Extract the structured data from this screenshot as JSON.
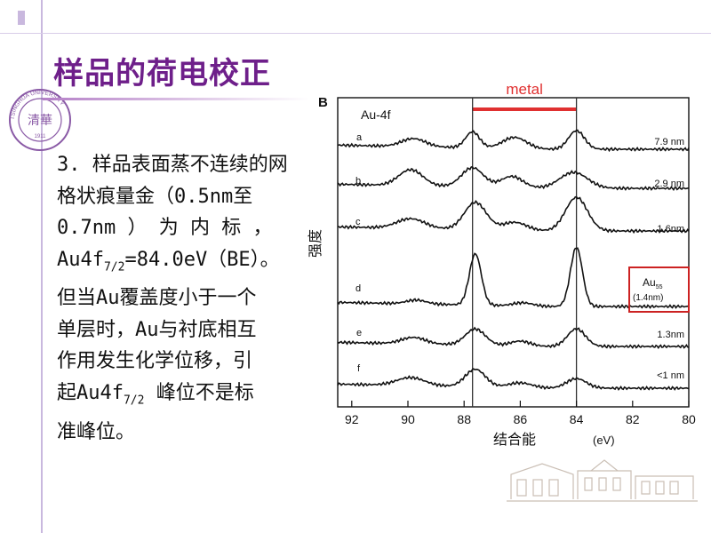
{
  "slide": {
    "title": "样品的荷电校正",
    "body_lines": [
      {
        "pre": "3. 样品表面蒸不连续的网"
      },
      {
        "pre": "格状痕量金（0.5nm至"
      },
      {
        "pre": "0.7nm ） 为 内 标 ，"
      },
      {
        "pre": "Au4f",
        "sub": "7/2",
        "post": "=84.0eV（BE）。"
      },
      {
        "pre": "但当Au覆盖度小于一个"
      },
      {
        "pre": "单层时，Au与衬底相互"
      },
      {
        "pre": "作用发生化学位移，引"
      },
      {
        "pre": "起Au4f",
        "sub": "7/2",
        "post": " 峰位不是标"
      },
      {
        "pre": "准峰位。"
      }
    ],
    "logo": {
      "center_text": "清華",
      "ring_text": "TSINGHUA UNIVERSITY",
      "year": "1911"
    }
  },
  "chart_data": {
    "type": "line",
    "panel_label": "B",
    "title": "Au-4f",
    "metal_label": "metal",
    "ylabel": "强度",
    "xlabel": "结合能",
    "xunit": "(eV)",
    "xlim": [
      92.5,
      80
    ],
    "x_ticks": [
      92,
      90,
      88,
      86,
      84,
      82,
      80
    ],
    "reference_lines": [
      87.7,
      84.0
    ],
    "metal_range": [
      87.7,
      84.0
    ],
    "colors": {
      "metal": "#e03030",
      "box": "#cc2222",
      "curve": "#111111"
    },
    "series": [
      {
        "label": "a",
        "right_label": "7.9 nm",
        "peaks": [
          {
            "x": 89.8,
            "h": 0.25,
            "w": 0.6
          },
          {
            "x": 87.7,
            "h": 0.5,
            "w": 0.35
          },
          {
            "x": 86.2,
            "h": 0.35,
            "w": 0.6
          },
          {
            "x": 84.0,
            "h": 0.58,
            "w": 0.4
          }
        ]
      },
      {
        "label": "b",
        "right_label": "2.9 nm",
        "peaks": [
          {
            "x": 89.9,
            "h": 0.5,
            "w": 0.6
          },
          {
            "x": 87.7,
            "h": 0.6,
            "w": 0.55
          },
          {
            "x": 86.3,
            "h": 0.35,
            "w": 0.55
          },
          {
            "x": 84.1,
            "h": 0.5,
            "w": 0.7
          }
        ]
      },
      {
        "label": "c",
        "right_label": "1.6nm",
        "peaks": [
          {
            "x": 89.9,
            "h": 0.3,
            "w": 0.7
          },
          {
            "x": 87.6,
            "h": 0.85,
            "w": 0.55
          },
          {
            "x": 86.2,
            "h": 0.25,
            "w": 0.6
          },
          {
            "x": 84.0,
            "h": 1.05,
            "w": 0.55
          }
        ]
      },
      {
        "label": "d",
        "right_label": "",
        "peaks": [
          {
            "x": 89.7,
            "h": 0.12,
            "w": 0.5
          },
          {
            "x": 87.6,
            "h": 1.6,
            "w": 0.3
          },
          {
            "x": 85.9,
            "h": 0.1,
            "w": 0.5
          },
          {
            "x": 84.0,
            "h": 1.85,
            "w": 0.3
          }
        ]
      },
      {
        "label": "e",
        "right_label": "1.3nm",
        "peaks": [
          {
            "x": 89.8,
            "h": 0.2,
            "w": 0.6
          },
          {
            "x": 87.6,
            "h": 0.5,
            "w": 0.5
          },
          {
            "x": 86.0,
            "h": 0.15,
            "w": 0.5
          },
          {
            "x": 84.0,
            "h": 0.55,
            "w": 0.45
          }
        ]
      },
      {
        "label": "f",
        "right_label": "<1 nm",
        "peaks": [
          {
            "x": 89.9,
            "h": 0.25,
            "w": 0.7
          },
          {
            "x": 87.6,
            "h": 0.55,
            "w": 0.5
          },
          {
            "x": 86.0,
            "h": 0.15,
            "w": 0.6
          },
          {
            "x": 84.0,
            "h": 0.3,
            "w": 0.5
          }
        ]
      }
    ],
    "boxed_annotation": {
      "line1": "Au",
      "sub": "55",
      "line2": "(1.4nm)"
    }
  }
}
